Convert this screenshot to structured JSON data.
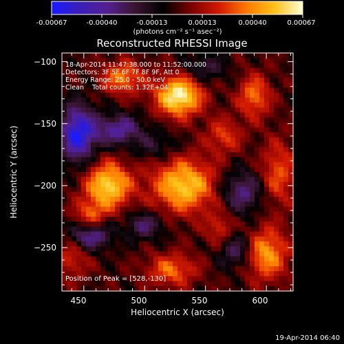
{
  "footer_timestamp": "19-Apr-2014 06:40",
  "colorbar": {
    "ticks": [
      "-0.00067",
      "-0.00040",
      "-0.00013",
      "0.00013",
      "0.00040",
      "0.00067"
    ],
    "units_label": "(photons cm⁻² s⁻¹ asec⁻²)",
    "range": [
      -0.00067,
      0.00067
    ],
    "colormap": [
      "#1a1aff",
      "#3a1fb8",
      "#55208f",
      "#3a1530",
      "#000000",
      "#7a0000",
      "#d21a00",
      "#ff7a00",
      "#ffc21a",
      "#ffffd6"
    ]
  },
  "chart_data": {
    "type": "heatmap",
    "title": "Reconstructed RHESSI Image",
    "xlabel": "Heliocentric X (arcsec)",
    "ylabel": "Heliocentric Y (arcsec)",
    "xlim": [
      432,
      622
    ],
    "ylim": [
      -285,
      -93
    ],
    "x_ticks": [
      450,
      500,
      550,
      600
    ],
    "y_ticks": [
      -100,
      -150,
      -200,
      -250
    ],
    "x_tick_labels": [
      "450",
      "500",
      "550",
      "600"
    ],
    "y_tick_labels": [
      "−100",
      "−150",
      "−200",
      "−250"
    ],
    "annotations": [
      "18-Apr-2014 11:47:38.000 to 11:52:00.000",
      "Detectors: 3F 5F 6F 7F 8F 9F, Att 0",
      "Energy Range: 25.0 - 50.0 keV",
      "Clean    Total counts: 1.32E+04"
    ],
    "peak_label": "Position of Peak = [528,-130]",
    "peak_position": [
      528,
      -130
    ],
    "blobs": [
      {
        "x": 528,
        "y": -128,
        "amp": 0.00067,
        "sx": 13,
        "sy": 11
      },
      {
        "x": 470,
        "y": -200,
        "amp": 0.00058,
        "sx": 13,
        "sy": 13
      },
      {
        "x": 532,
        "y": -200,
        "amp": 0.00055,
        "sx": 18,
        "sy": 15
      },
      {
        "x": 482,
        "y": -113,
        "amp": 0.00038,
        "sx": 12,
        "sy": 9
      },
      {
        "x": 590,
        "y": -128,
        "amp": 0.00036,
        "sx": 9,
        "sy": 12
      },
      {
        "x": 610,
        "y": -190,
        "amp": 0.0003,
        "sx": 10,
        "sy": 18
      },
      {
        "x": 600,
        "y": -255,
        "amp": 0.00045,
        "sx": 12,
        "sy": 14
      },
      {
        "x": 440,
        "y": -258,
        "amp": 0.00022,
        "sx": 10,
        "sy": 12
      },
      {
        "x": 522,
        "y": -268,
        "amp": 0.00034,
        "sx": 14,
        "sy": 9
      },
      {
        "x": 565,
        "y": -160,
        "amp": 0.00026,
        "sx": 10,
        "sy": 10
      },
      {
        "x": 562,
        "y": -235,
        "amp": 0.00024,
        "sx": 8,
        "sy": 10
      },
      {
        "x": 455,
        "y": -225,
        "amp": 0.0003,
        "sx": 9,
        "sy": 9
      },
      {
        "x": 445,
        "y": -158,
        "amp": -0.00062,
        "sx": 10,
        "sy": 16
      },
      {
        "x": 478,
        "y": -155,
        "amp": -0.0004,
        "sx": 14,
        "sy": 9
      },
      {
        "x": 455,
        "y": -240,
        "amp": -0.00045,
        "sx": 12,
        "sy": 8
      },
      {
        "x": 500,
        "y": -232,
        "amp": -0.0003,
        "sx": 11,
        "sy": 8
      },
      {
        "x": 580,
        "y": -205,
        "amp": -0.00035,
        "sx": 12,
        "sy": 12
      },
      {
        "x": 575,
        "y": -252,
        "amp": -0.0003,
        "sx": 10,
        "sy": 10
      },
      {
        "x": 550,
        "y": -105,
        "amp": -0.00022,
        "sx": 12,
        "sy": 8
      },
      {
        "x": 510,
        "y": -168,
        "amp": -0.00018,
        "sx": 12,
        "sy": 8
      }
    ]
  }
}
